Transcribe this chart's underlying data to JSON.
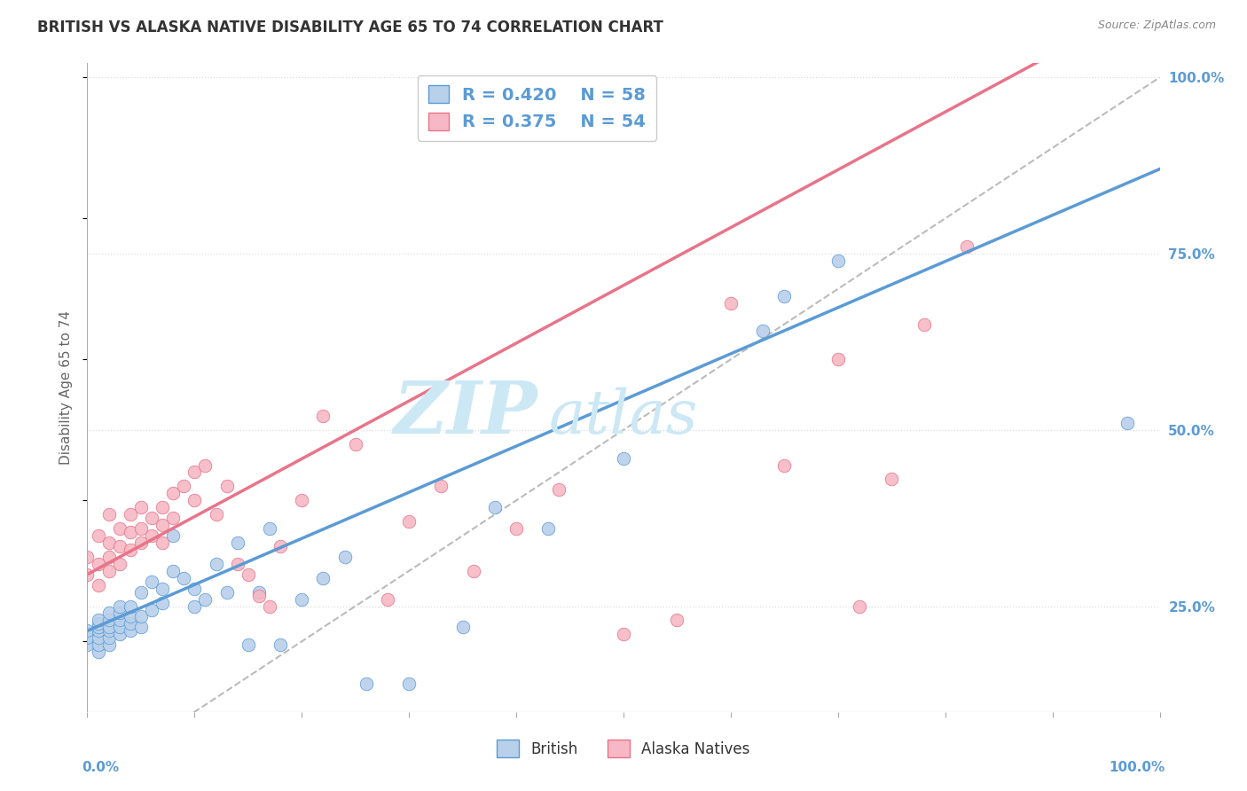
{
  "title": "BRITISH VS ALASKA NATIVE DISABILITY AGE 65 TO 74 CORRELATION CHART",
  "source": "Source: ZipAtlas.com",
  "ylabel": "Disability Age 65 to 74",
  "xlim": [
    0.0,
    1.0
  ],
  "ylim": [
    0.1,
    1.02
  ],
  "ytick_positions": [
    0.25,
    0.5,
    0.75,
    1.0
  ],
  "ytick_labels": [
    "25.0%",
    "50.0%",
    "75.0%",
    "100.0%"
  ],
  "legend_R_british": "R = 0.420",
  "legend_N_british": "N = 58",
  "legend_R_alaska": "R = 0.375",
  "legend_N_alaska": "N = 54",
  "british_color": "#b8d0ea",
  "alaska_color": "#f5b8c4",
  "regression_british_color": "#5b9bd5",
  "regression_alaska_color": "#e8748a",
  "diagonal_color": "#bbbbbb",
  "background_color": "#ffffff",
  "grid_color": "#dddddd",
  "watermark_color": "#cce8f5",
  "title_color": "#333333",
  "axis_label_color": "#5b9bd5",
  "regression_british_slope": 0.655,
  "regression_british_intercept": 0.215,
  "regression_alaska_slope": 0.82,
  "regression_alaska_intercept": 0.295,
  "british_scatter_x": [
    0.0,
    0.0,
    0.0,
    0.01,
    0.01,
    0.01,
    0.01,
    0.01,
    0.01,
    0.01,
    0.02,
    0.02,
    0.02,
    0.02,
    0.02,
    0.02,
    0.03,
    0.03,
    0.03,
    0.03,
    0.03,
    0.04,
    0.04,
    0.04,
    0.04,
    0.05,
    0.05,
    0.05,
    0.06,
    0.06,
    0.07,
    0.07,
    0.08,
    0.08,
    0.09,
    0.1,
    0.1,
    0.11,
    0.12,
    0.13,
    0.14,
    0.15,
    0.16,
    0.17,
    0.18,
    0.2,
    0.22,
    0.24,
    0.26,
    0.3,
    0.35,
    0.38,
    0.43,
    0.5,
    0.63,
    0.65,
    0.7,
    0.97
  ],
  "british_scatter_y": [
    0.195,
    0.205,
    0.215,
    0.185,
    0.195,
    0.205,
    0.215,
    0.22,
    0.225,
    0.23,
    0.195,
    0.205,
    0.215,
    0.22,
    0.23,
    0.24,
    0.21,
    0.22,
    0.23,
    0.24,
    0.25,
    0.215,
    0.225,
    0.235,
    0.25,
    0.22,
    0.235,
    0.27,
    0.245,
    0.285,
    0.255,
    0.275,
    0.3,
    0.35,
    0.29,
    0.25,
    0.275,
    0.26,
    0.31,
    0.27,
    0.34,
    0.195,
    0.27,
    0.36,
    0.195,
    0.26,
    0.29,
    0.32,
    0.14,
    0.14,
    0.22,
    0.39,
    0.36,
    0.46,
    0.64,
    0.69,
    0.74,
    0.51
  ],
  "alaska_scatter_x": [
    0.0,
    0.0,
    0.01,
    0.01,
    0.01,
    0.02,
    0.02,
    0.02,
    0.02,
    0.03,
    0.03,
    0.03,
    0.04,
    0.04,
    0.04,
    0.05,
    0.05,
    0.05,
    0.06,
    0.06,
    0.07,
    0.07,
    0.07,
    0.08,
    0.08,
    0.09,
    0.1,
    0.1,
    0.11,
    0.12,
    0.13,
    0.14,
    0.15,
    0.16,
    0.17,
    0.18,
    0.2,
    0.22,
    0.25,
    0.28,
    0.3,
    0.33,
    0.36,
    0.4,
    0.44,
    0.5,
    0.55,
    0.6,
    0.65,
    0.7,
    0.72,
    0.75,
    0.78,
    0.82
  ],
  "alaska_scatter_y": [
    0.295,
    0.32,
    0.28,
    0.31,
    0.35,
    0.3,
    0.32,
    0.34,
    0.38,
    0.31,
    0.335,
    0.36,
    0.33,
    0.355,
    0.38,
    0.34,
    0.36,
    0.39,
    0.35,
    0.375,
    0.34,
    0.365,
    0.39,
    0.375,
    0.41,
    0.42,
    0.4,
    0.44,
    0.45,
    0.38,
    0.42,
    0.31,
    0.295,
    0.265,
    0.25,
    0.335,
    0.4,
    0.52,
    0.48,
    0.26,
    0.37,
    0.42,
    0.3,
    0.36,
    0.415,
    0.21,
    0.23,
    0.68,
    0.45,
    0.6,
    0.25,
    0.43,
    0.65,
    0.76
  ],
  "title_fontsize": 12,
  "label_fontsize": 11,
  "legend_fontsize": 14,
  "tick_fontsize": 11
}
